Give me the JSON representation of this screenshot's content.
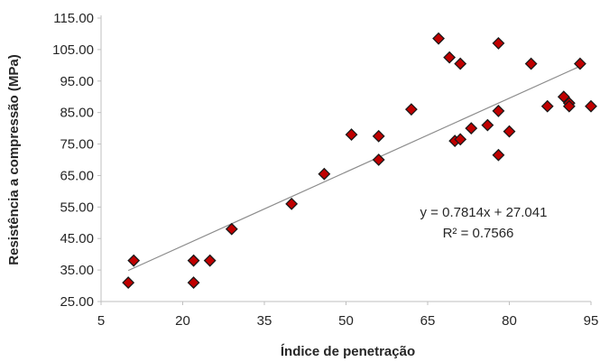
{
  "chart_data": {
    "type": "scatter",
    "title": "",
    "xlabel": "Índice de penetração",
    "ylabel": "Resistência a compressão (MPa)",
    "xlim": [
      5,
      95
    ],
    "ylim": [
      25,
      115
    ],
    "xticks": [
      "5",
      "20",
      "35",
      "50",
      "65",
      "80",
      "95"
    ],
    "yticks": [
      "25.00",
      "35.00",
      "45.00",
      "55.00",
      "65.00",
      "75.00",
      "85.00",
      "95.00",
      "105.00",
      "115.00"
    ],
    "grid": false,
    "marker_color": "#c00000",
    "marker_edge": "#1a1a1a",
    "trendline_color": "#8c8c8c",
    "points": [
      {
        "x": 10,
        "y": 31
      },
      {
        "x": 11,
        "y": 38
      },
      {
        "x": 22,
        "y": 31
      },
      {
        "x": 22,
        "y": 38
      },
      {
        "x": 25,
        "y": 38
      },
      {
        "x": 29,
        "y": 48
      },
      {
        "x": 40,
        "y": 56
      },
      {
        "x": 46,
        "y": 65.5
      },
      {
        "x": 51,
        "y": 78
      },
      {
        "x": 56,
        "y": 77.5
      },
      {
        "x": 56,
        "y": 70
      },
      {
        "x": 62,
        "y": 86
      },
      {
        "x": 67,
        "y": 108.5
      },
      {
        "x": 69,
        "y": 102.5
      },
      {
        "x": 70,
        "y": 76
      },
      {
        "x": 71,
        "y": 76.5
      },
      {
        "x": 71,
        "y": 100.5
      },
      {
        "x": 73,
        "y": 80
      },
      {
        "x": 76,
        "y": 81
      },
      {
        "x": 78,
        "y": 107
      },
      {
        "x": 78,
        "y": 85.5
      },
      {
        "x": 78,
        "y": 71.5
      },
      {
        "x": 80,
        "y": 79
      },
      {
        "x": 84,
        "y": 100.5
      },
      {
        "x": 87,
        "y": 87
      },
      {
        "x": 90,
        "y": 90
      },
      {
        "x": 91,
        "y": 88
      },
      {
        "x": 91,
        "y": 87
      },
      {
        "x": 93,
        "y": 100.5
      },
      {
        "x": 95,
        "y": 87
      }
    ],
    "trendline": {
      "slope": 0.7814,
      "intercept": 27.041,
      "x_range": [
        10,
        93.5
      ],
      "equation": "y = 0.7814x + 27.041",
      "r2_text": "R² = 0.7566"
    }
  }
}
